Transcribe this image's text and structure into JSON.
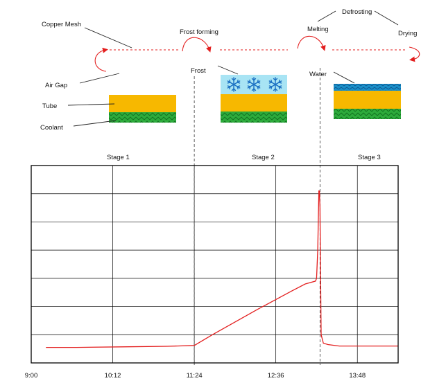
{
  "labels": {
    "copper_mesh": "Copper Mesh",
    "air_gap": "Air Gap",
    "tube": "Tube",
    "coolant": "Coolant",
    "frost_forming": "Frost forming",
    "frost": "Frost",
    "melting": "Melting",
    "defrosting": "Defrosting",
    "drying": "Drying",
    "water": "Water"
  },
  "stages": [
    "Stage 1",
    "Stage 2",
    "Stage 3"
  ],
  "colors": {
    "tube": "#f7b800",
    "coolant": "#2dab3c",
    "frost": "#a8e4f4",
    "snowflake": "#1a6fc2",
    "water": "#1a8fc8",
    "accent": "#e31e1e",
    "grid": "#000000"
  },
  "chart_data": {
    "type": "line",
    "x_tick_labels": [
      "9:00",
      "10:12",
      "11:24",
      "12:36",
      "13:48"
    ],
    "x_tick_minutes": [
      540,
      612,
      684,
      756,
      828
    ],
    "xlim": [
      540,
      864
    ],
    "ylim": [
      0,
      7
    ],
    "grid": true,
    "stage_boundaries_minutes": [
      684,
      795
    ],
    "series": [
      {
        "x": [
          553,
          580,
          620,
          660,
          684,
          700,
          740,
          770,
          782,
          791,
          792,
          793,
          794,
          794.5,
          795,
          796,
          798,
          802,
          812,
          830,
          864
        ],
        "y": [
          0.55,
          0.55,
          0.57,
          0.59,
          0.62,
          1.0,
          1.9,
          2.55,
          2.8,
          2.9,
          3.0,
          4.0,
          6.1,
          6.1,
          5.5,
          1.0,
          0.7,
          0.65,
          0.6,
          0.6,
          0.6
        ]
      }
    ]
  }
}
